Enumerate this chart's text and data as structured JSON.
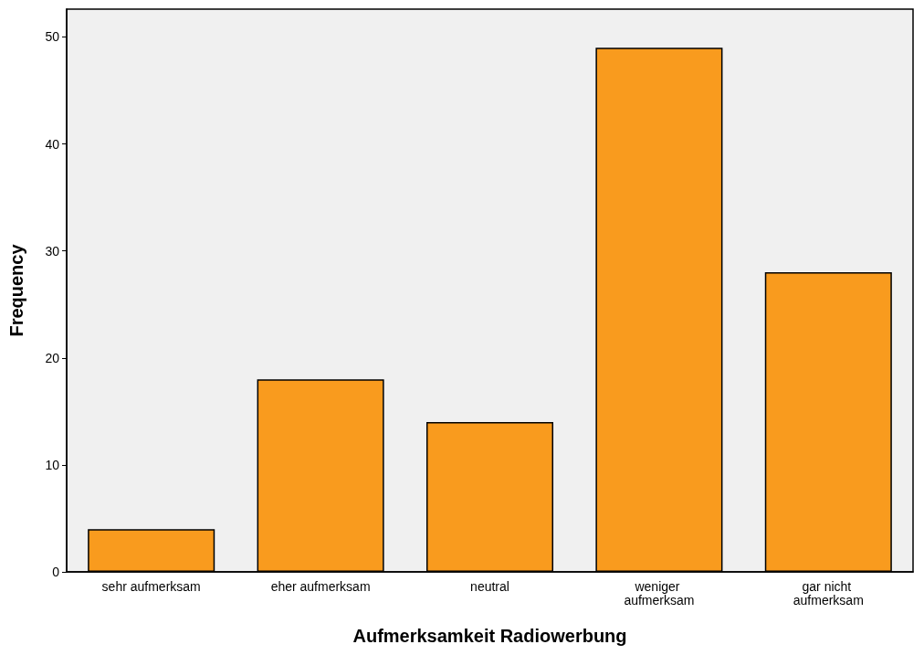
{
  "chart_data": {
    "type": "bar",
    "xlabel": "Aufmerksamkeit Radiowerbung",
    "ylabel": "Frequency",
    "categories": [
      "sehr aufmerksam",
      "eher aufmerksam",
      "neutral",
      "weniger aufmerksam",
      "gar nicht aufmerksam"
    ],
    "values": [
      4,
      18,
      14,
      49,
      28
    ],
    "color": "#f99b1e",
    "ylim": [
      0,
      52.6
    ],
    "yticks": [
      0,
      10,
      20,
      30,
      40,
      50
    ],
    "grid": false
  }
}
